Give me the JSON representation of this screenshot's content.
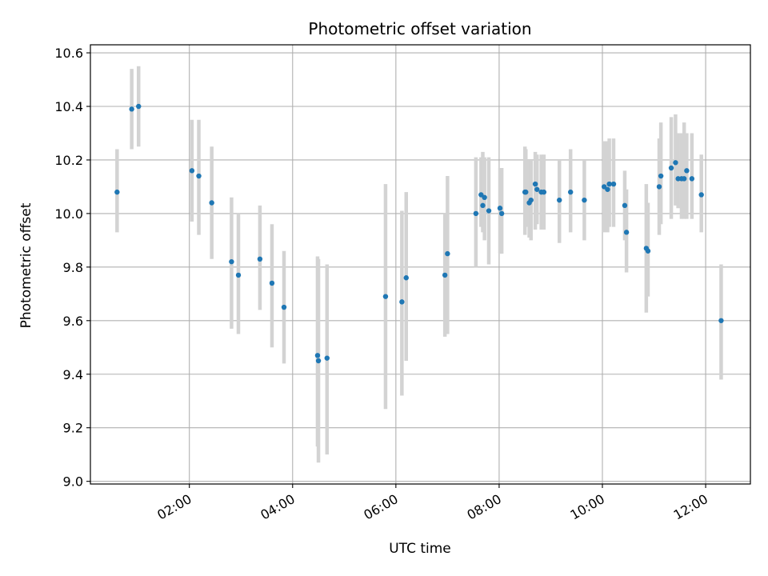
{
  "chart_data": {
    "type": "scatter",
    "title": "Photometric offset variation",
    "xlabel": "UTC time",
    "ylabel": "Photometric offset",
    "grid": true,
    "xlim": [
      "00:05",
      "12:52"
    ],
    "ylim": [
      8.99,
      10.63
    ],
    "x_ticks": [
      "02:00",
      "04:00",
      "06:00",
      "08:00",
      "10:00",
      "12:00"
    ],
    "y_ticks": [
      "9.0",
      "9.2",
      "9.4",
      "9.6",
      "9.8",
      "10.0",
      "10.2",
      "10.4",
      "10.6"
    ],
    "colors": {
      "point": "#1f77b4",
      "errorbar": "#d3d3d3",
      "grid": "#b0b0b0"
    },
    "series": [
      {
        "x": [
          "00:36",
          "00:53",
          "01:01",
          "02:03",
          "02:11",
          "02:26",
          "02:49",
          "02:57",
          "03:22",
          "03:36",
          "03:50",
          "04:29",
          "04:30",
          "04:40",
          "05:48",
          "06:07",
          "06:12",
          "06:57",
          "07:00",
          "07:33",
          "07:39",
          "07:41",
          "07:43",
          "07:48",
          "08:01",
          "08:03",
          "08:30",
          "08:31",
          "08:35",
          "08:37",
          "08:42",
          "08:44",
          "08:49",
          "08:52",
          "09:10",
          "09:23",
          "09:39",
          "10:02",
          "10:06",
          "10:08",
          "10:13",
          "10:26",
          "10:28",
          "10:51",
          "10:53",
          "11:06",
          "11:08",
          "11:20",
          "11:25",
          "11:28",
          "11:32",
          "11:35",
          "11:38",
          "11:44",
          "11:55",
          "12:18"
        ],
        "y": [
          10.08,
          10.39,
          10.4,
          10.16,
          10.14,
          10.04,
          9.82,
          9.77,
          9.83,
          9.74,
          9.65,
          9.47,
          9.45,
          9.46,
          9.69,
          9.67,
          9.76,
          9.77,
          9.85,
          10.0,
          10.07,
          10.03,
          10.06,
          10.01,
          10.02,
          10.0,
          10.08,
          10.08,
          10.04,
          10.05,
          10.11,
          10.09,
          10.08,
          10.08,
          10.05,
          10.08,
          10.05,
          10.1,
          10.09,
          10.11,
          10.11,
          10.03,
          9.93,
          9.87,
          9.86,
          10.1,
          10.14,
          10.17,
          10.19,
          10.13,
          10.13,
          10.13,
          10.16,
          10.13,
          10.07,
          9.6
        ],
        "y_lower": [
          9.93,
          10.24,
          10.25,
          9.97,
          9.92,
          9.83,
          9.57,
          9.55,
          9.64,
          9.5,
          9.44,
          9.13,
          9.07,
          9.1,
          9.27,
          9.32,
          9.45,
          9.54,
          9.55,
          9.8,
          9.95,
          9.93,
          9.9,
          9.81,
          9.85,
          9.85,
          9.92,
          9.95,
          9.91,
          9.9,
          9.94,
          9.96,
          9.94,
          9.94,
          9.89,
          9.93,
          9.9,
          9.93,
          9.93,
          9.95,
          9.95,
          9.9,
          9.78,
          9.63,
          9.69,
          9.92,
          9.96,
          9.98,
          10.03,
          10.02,
          9.98,
          9.98,
          9.98,
          9.98,
          9.93,
          9.38
        ],
        "y_upper": [
          10.24,
          10.54,
          10.55,
          10.35,
          10.35,
          10.25,
          10.06,
          10.0,
          10.03,
          9.96,
          9.86,
          9.84,
          9.83,
          9.81,
          10.11,
          10.01,
          10.08,
          10.0,
          10.14,
          10.21,
          10.21,
          10.23,
          10.21,
          10.21,
          10.17,
          10.17,
          10.25,
          10.24,
          10.2,
          10.2,
          10.23,
          10.22,
          10.22,
          10.22,
          10.2,
          10.24,
          10.2,
          10.27,
          10.27,
          10.28,
          10.28,
          10.16,
          10.09,
          10.11,
          10.04,
          10.28,
          10.34,
          10.36,
          10.37,
          10.3,
          10.3,
          10.34,
          10.3,
          10.3,
          10.22,
          9.81
        ]
      }
    ]
  }
}
